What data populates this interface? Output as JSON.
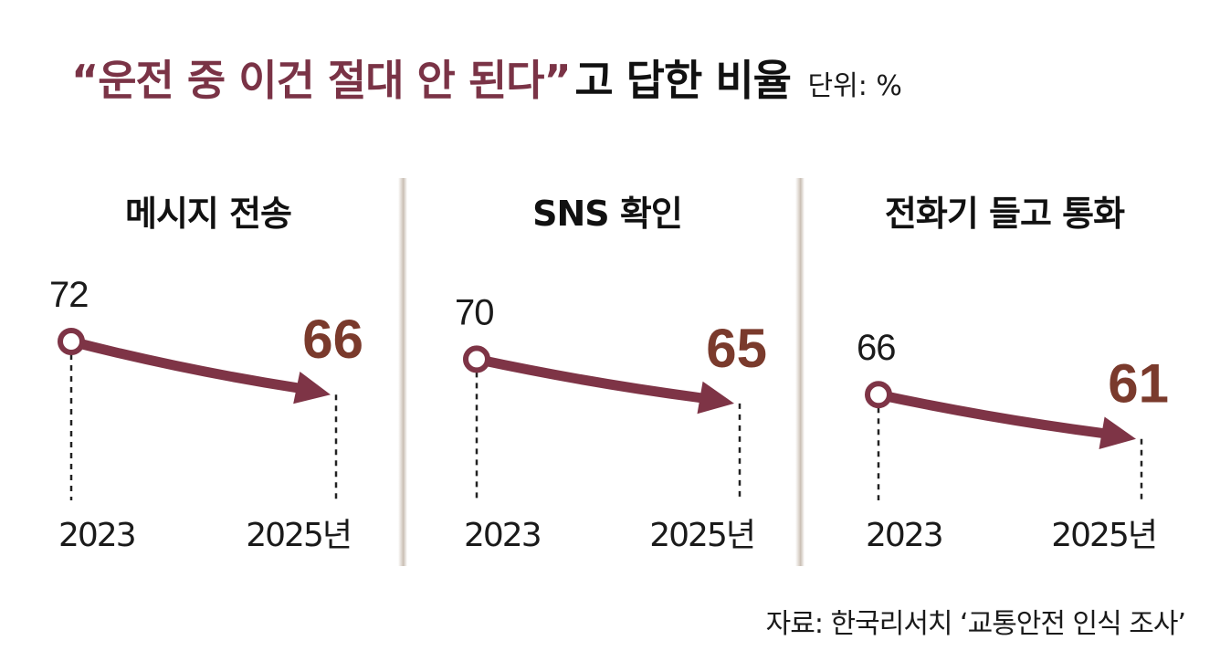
{
  "title": {
    "quoted": "“운전 중 이건 절대 안 된다”",
    "rest": "고 답한 비율",
    "unit": "단위: %"
  },
  "source": "자료: 한국리서치 ‘교통안전 인식 조사’",
  "colors": {
    "line": "#7e3446",
    "end_value": "#7a3a2c",
    "start_value": "#1a1a1a"
  },
  "chart_data": [
    {
      "type": "line",
      "title": "메시지 전송",
      "x": [
        "2023",
        "2025년"
      ],
      "values": [
        72,
        66
      ]
    },
    {
      "type": "line",
      "title": "SNS 확인",
      "x": [
        "2023",
        "2025년"
      ],
      "values": [
        70,
        65
      ]
    },
    {
      "type": "line",
      "title": "전화기 들고 통화",
      "x": [
        "2023",
        "2025년"
      ],
      "values": [
        66,
        61
      ]
    }
  ]
}
